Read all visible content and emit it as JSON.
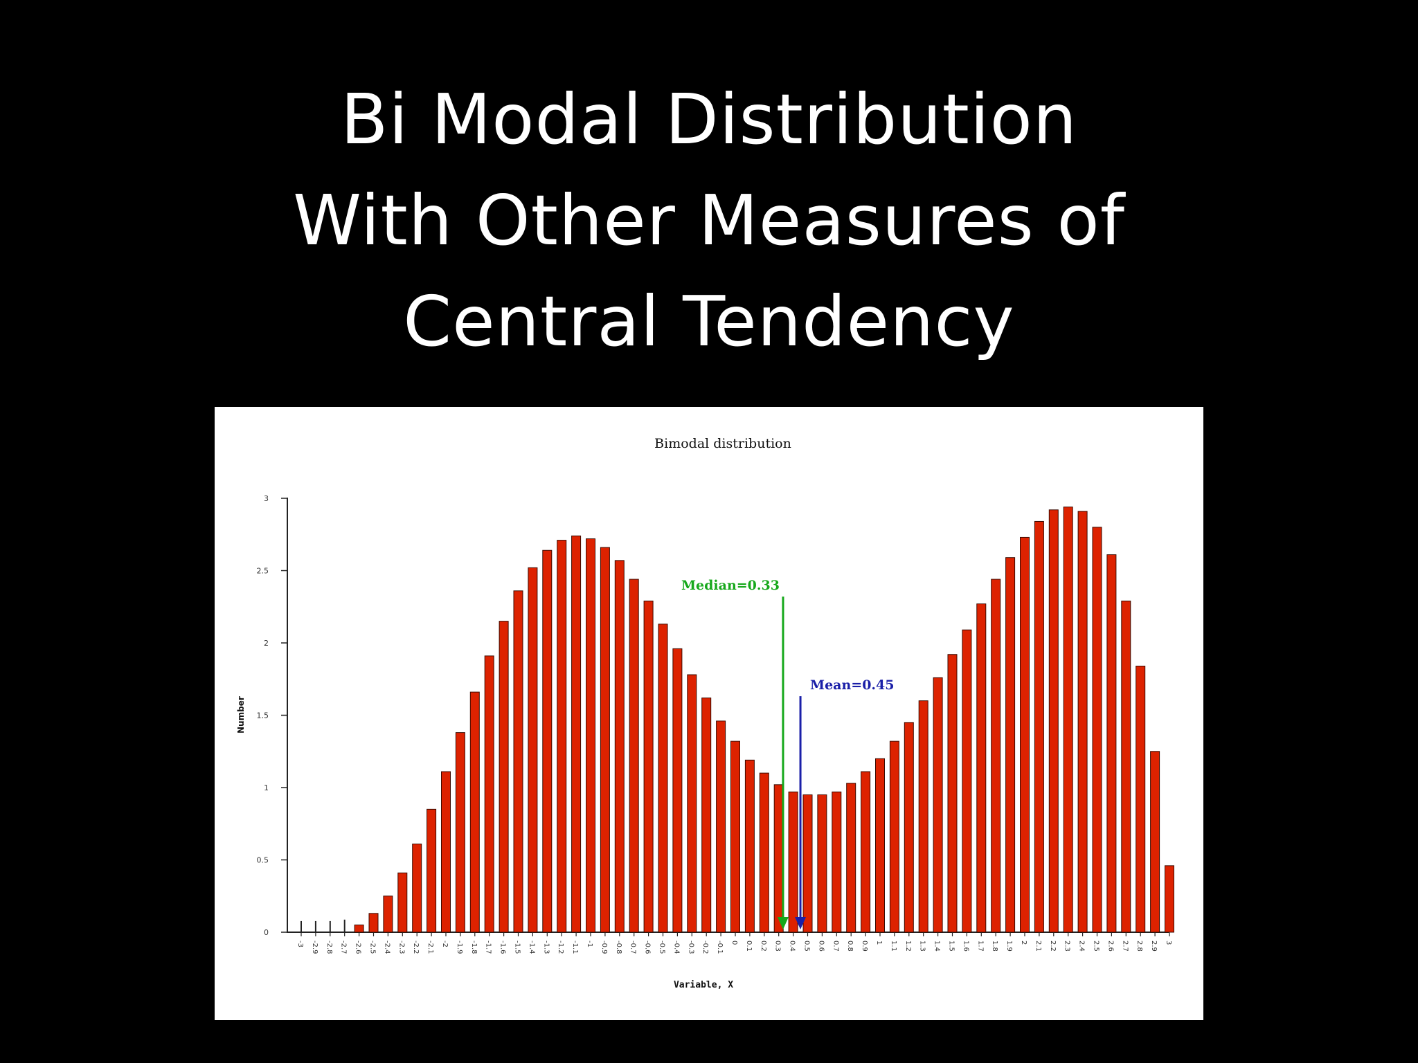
{
  "slide": {
    "title_lines": [
      "Bi Modal Distribution",
      "With Other Measures of",
      "Central Tendency"
    ]
  },
  "chart_data": {
    "type": "bar",
    "title": "Bimodal distribution",
    "xlabel": "Variable, X",
    "ylabel": "Number",
    "ylim": [
      0,
      3
    ],
    "yticks": [
      "0",
      "0.5",
      "1",
      "1.5",
      "2",
      "2.5",
      "3"
    ],
    "grid": false,
    "bar_color": "#dd2200",
    "categories": [
      "-3",
      "-2.9",
      "-2.8",
      "-2.7",
      "-2.6",
      "-2.5",
      "-2.4",
      "-2.3",
      "-2.2",
      "-2.1",
      "-2",
      "-1.9",
      "-1.8",
      "-1.7",
      "-1.6",
      "-1.5",
      "-1.4",
      "-1.3",
      "-1.2",
      "-1.1",
      "-1",
      "-0.9",
      "-0.8",
      "-0.7",
      "-0.6",
      "-0.5",
      "-0.4",
      "-0.3",
      "-0.2",
      "-0.1",
      "0",
      "0.1",
      "0.2",
      "0.3",
      "0.4",
      "0.5",
      "0.6",
      "0.7",
      "0.8",
      "0.9",
      "1",
      "1.1",
      "1.2",
      "1.3",
      "1.4",
      "1.5",
      "1.6",
      "1.7",
      "1.8",
      "1.9",
      "2",
      "2.1",
      "2.2",
      "2.3",
      "2.4",
      "2.5",
      "2.6",
      "2.7",
      "2.8",
      "2.9",
      "3"
    ],
    "values": [
      0.01,
      0.01,
      0.01,
      0.02,
      0.05,
      0.13,
      0.25,
      0.41,
      0.61,
      0.85,
      1.11,
      1.38,
      1.66,
      1.91,
      2.15,
      2.36,
      2.52,
      2.64,
      2.71,
      2.74,
      2.72,
      2.66,
      2.57,
      2.44,
      2.29,
      2.13,
      1.96,
      1.78,
      1.62,
      1.46,
      1.32,
      1.19,
      1.1,
      1.02,
      0.97,
      0.95,
      0.95,
      0.97,
      1.03,
      1.11,
      1.2,
      1.32,
      1.45,
      1.6,
      1.76,
      1.92,
      2.09,
      2.27,
      2.44,
      2.59,
      2.73,
      2.84,
      2.92,
      2.94,
      2.91,
      2.8,
      2.61,
      2.29,
      1.84,
      1.25,
      0.46
    ],
    "markers": [
      {
        "label": "Median=0.33",
        "x": 0.33,
        "color": "#16a81b"
      },
      {
        "label": "Mean=0.45",
        "x": 0.45,
        "color": "#1a1fa8"
      }
    ]
  }
}
